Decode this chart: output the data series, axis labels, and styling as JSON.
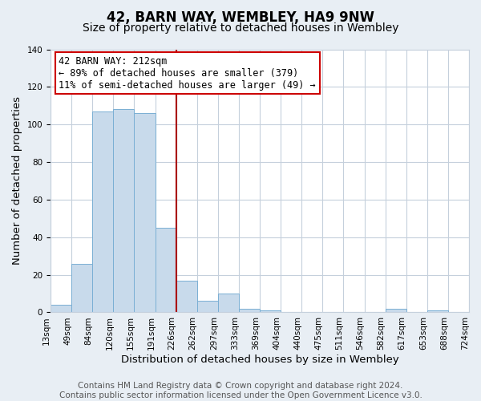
{
  "title": "42, BARN WAY, WEMBLEY, HA9 9NW",
  "subtitle": "Size of property relative to detached houses in Wembley",
  "xlabel": "Distribution of detached houses by size in Wembley",
  "ylabel": "Number of detached properties",
  "bar_values": [
    4,
    26,
    107,
    108,
    106,
    45,
    17,
    6,
    10,
    2,
    1,
    0,
    0,
    0,
    0,
    0,
    2,
    0,
    1,
    0
  ],
  "bin_labels": [
    "13sqm",
    "49sqm",
    "84sqm",
    "120sqm",
    "155sqm",
    "191sqm",
    "226sqm",
    "262sqm",
    "297sqm",
    "333sqm",
    "369sqm",
    "404sqm",
    "440sqm",
    "475sqm",
    "511sqm",
    "546sqm",
    "582sqm",
    "617sqm",
    "653sqm",
    "688sqm",
    "724sqm"
  ],
  "bar_color": "#c8daeb",
  "bar_edge_color": "#7aafd4",
  "vline_x": 5.5,
  "vline_color": "#aa0000",
  "annotation_text": "42 BARN WAY: 212sqm\n← 89% of detached houses are smaller (379)\n11% of semi-detached houses are larger (49) →",
  "annotation_box_color": "#ffffff",
  "annotation_box_edge": "#cc0000",
  "ylim": [
    0,
    140
  ],
  "yticks": [
    0,
    20,
    40,
    60,
    80,
    100,
    120,
    140
  ],
  "footer_text": "Contains HM Land Registry data © Crown copyright and database right 2024.\nContains public sector information licensed under the Open Government Licence v3.0.",
  "background_color": "#e8eef4",
  "plot_bg_color": "#ffffff",
  "grid_color": "#c5d0dc",
  "title_fontsize": 12,
  "subtitle_fontsize": 10,
  "label_fontsize": 9.5,
  "tick_fontsize": 7.5,
  "footer_fontsize": 7.5,
  "annotation_fontsize": 8.5
}
